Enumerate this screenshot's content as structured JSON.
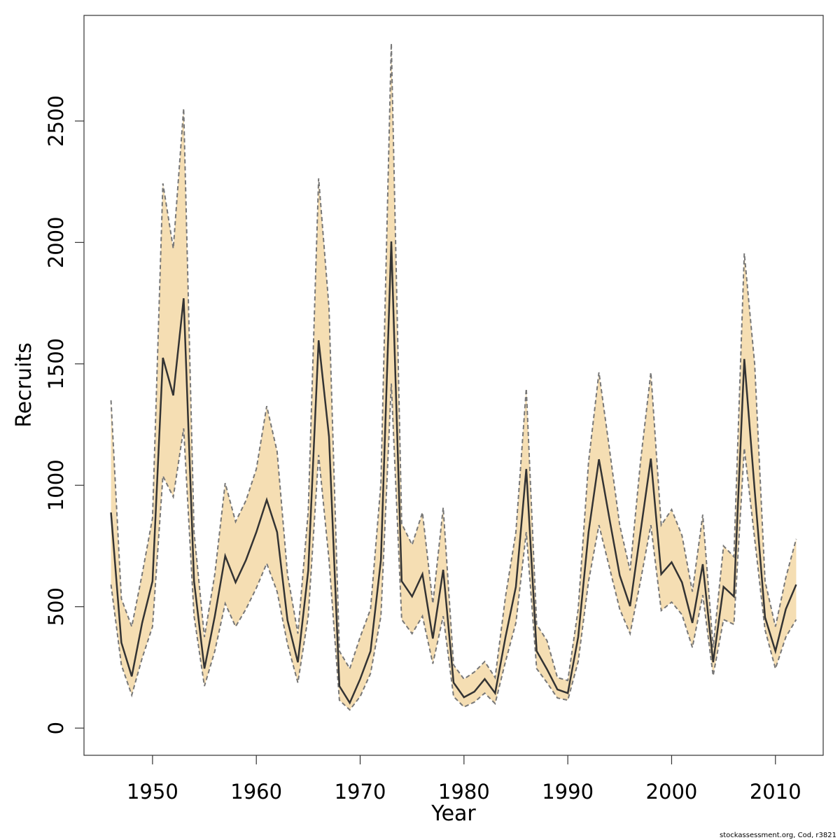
{
  "chart_data": {
    "type": "line",
    "xlabel": "Year",
    "ylabel": "Recruits",
    "footnote": "stockassessment.org, Cod, r3821",
    "x": [
      1946,
      1947,
      1948,
      1949,
      1950,
      1951,
      1952,
      1953,
      1954,
      1955,
      1956,
      1957,
      1958,
      1959,
      1960,
      1961,
      1962,
      1963,
      1964,
      1965,
      1966,
      1967,
      1968,
      1969,
      1970,
      1971,
      1972,
      1973,
      1974,
      1975,
      1976,
      1977,
      1978,
      1979,
      1980,
      1981,
      1982,
      1983,
      1984,
      1985,
      1986,
      1987,
      1988,
      1989,
      1990,
      1991,
      1992,
      1993,
      1994,
      1995,
      1996,
      1997,
      1998,
      1999,
      2000,
      2001,
      2002,
      2003,
      2004,
      2005,
      2006,
      2007,
      2008,
      2009,
      2010,
      2011,
      2012
    ],
    "series": [
      {
        "color": "#333333",
        "values": [
          888,
          352,
          213,
          433,
          605,
          1525,
          1370,
          1770,
          605,
          245,
          461,
          709,
          600,
          692,
          807,
          940,
          807,
          444,
          271,
          649,
          1597,
          1200,
          173,
          104,
          202,
          317,
          692,
          2004,
          605,
          542,
          634,
          369,
          652,
          187,
          127,
          150,
          202,
          144,
          375,
          582,
          1067,
          317,
          242,
          159,
          144,
          375,
          807,
          1107,
          865,
          629,
          502,
          807,
          1110,
          634,
          683,
          600,
          433,
          675,
          271,
          582,
          542,
          1520,
          980,
          456,
          317,
          490,
          591
        ]
      }
    ],
    "band": {
      "color": "#f5deb3",
      "line_color": "#777777",
      "upper": [
        1350,
        533,
        418,
        634,
        865,
        2243,
        1975,
        2552,
        807,
        375,
        634,
        1009,
        850,
        937,
        1067,
        1326,
        1139,
        634,
        389,
        894,
        2264,
        1730,
        317,
        245,
        375,
        490,
        1009,
        2820,
        842,
        755,
        888,
        513,
        908,
        260,
        202,
        231,
        274,
        208,
        542,
        807,
        1398,
        427,
        360,
        208,
        196,
        490,
        1096,
        1465,
        1153,
        836,
        649,
        1096,
        1465,
        836,
        900,
        793,
        562,
        879,
        332,
        750,
        706,
        1955,
        1499,
        605,
        418,
        620,
        779
      ],
      "lower": [
        591,
        260,
        136,
        288,
        418,
        1038,
        952,
        1234,
        461,
        173,
        317,
        513,
        418,
        490,
        577,
        678,
        562,
        346,
        187,
        461,
        1125,
        692,
        115,
        75,
        130,
        225,
        461,
        1419,
        447,
        389,
        461,
        265,
        461,
        130,
        87,
        107,
        144,
        101,
        274,
        433,
        807,
        245,
        187,
        124,
        115,
        274,
        605,
        836,
        663,
        490,
        389,
        605,
        836,
        484,
        519,
        467,
        332,
        548,
        216,
        447,
        427,
        1153,
        779,
        404,
        245,
        375,
        447
      ]
    },
    "xlim": [
      1943.4,
      2014.6
    ],
    "ylim": [
      -112,
      2935
    ],
    "xticks": [
      1950,
      1960,
      1970,
      1980,
      1990,
      2000,
      2010
    ],
    "yticks": [
      0,
      500,
      1000,
      1500,
      2000,
      2500
    ]
  }
}
